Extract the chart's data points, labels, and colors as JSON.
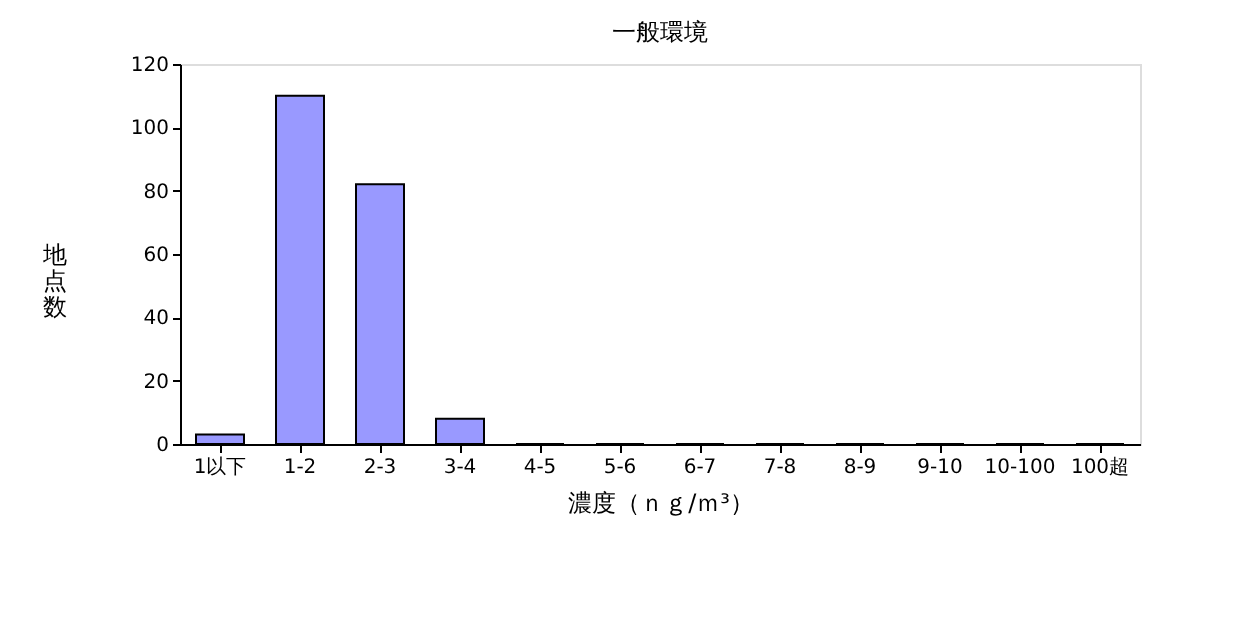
{
  "chart_data": {
    "type": "bar",
    "title": "一般環境",
    "xlabel": "濃度（ｎｇ/ｍ³）",
    "ylabel": "地点数",
    "categories": [
      "1以下",
      "1-2",
      "2-3",
      "3-4",
      "4-5",
      "5-6",
      "6-7",
      "7-8",
      "8-9",
      "9-10",
      "10-100",
      "100超"
    ],
    "values": [
      3,
      110,
      82,
      8,
      0,
      0,
      0,
      0,
      0,
      0,
      0,
      0
    ],
    "color": "#9999ff",
    "ylim": [
      0,
      120
    ],
    "yticks": [
      0,
      20,
      40,
      60,
      80,
      100,
      120
    ],
    "grid": false
  }
}
